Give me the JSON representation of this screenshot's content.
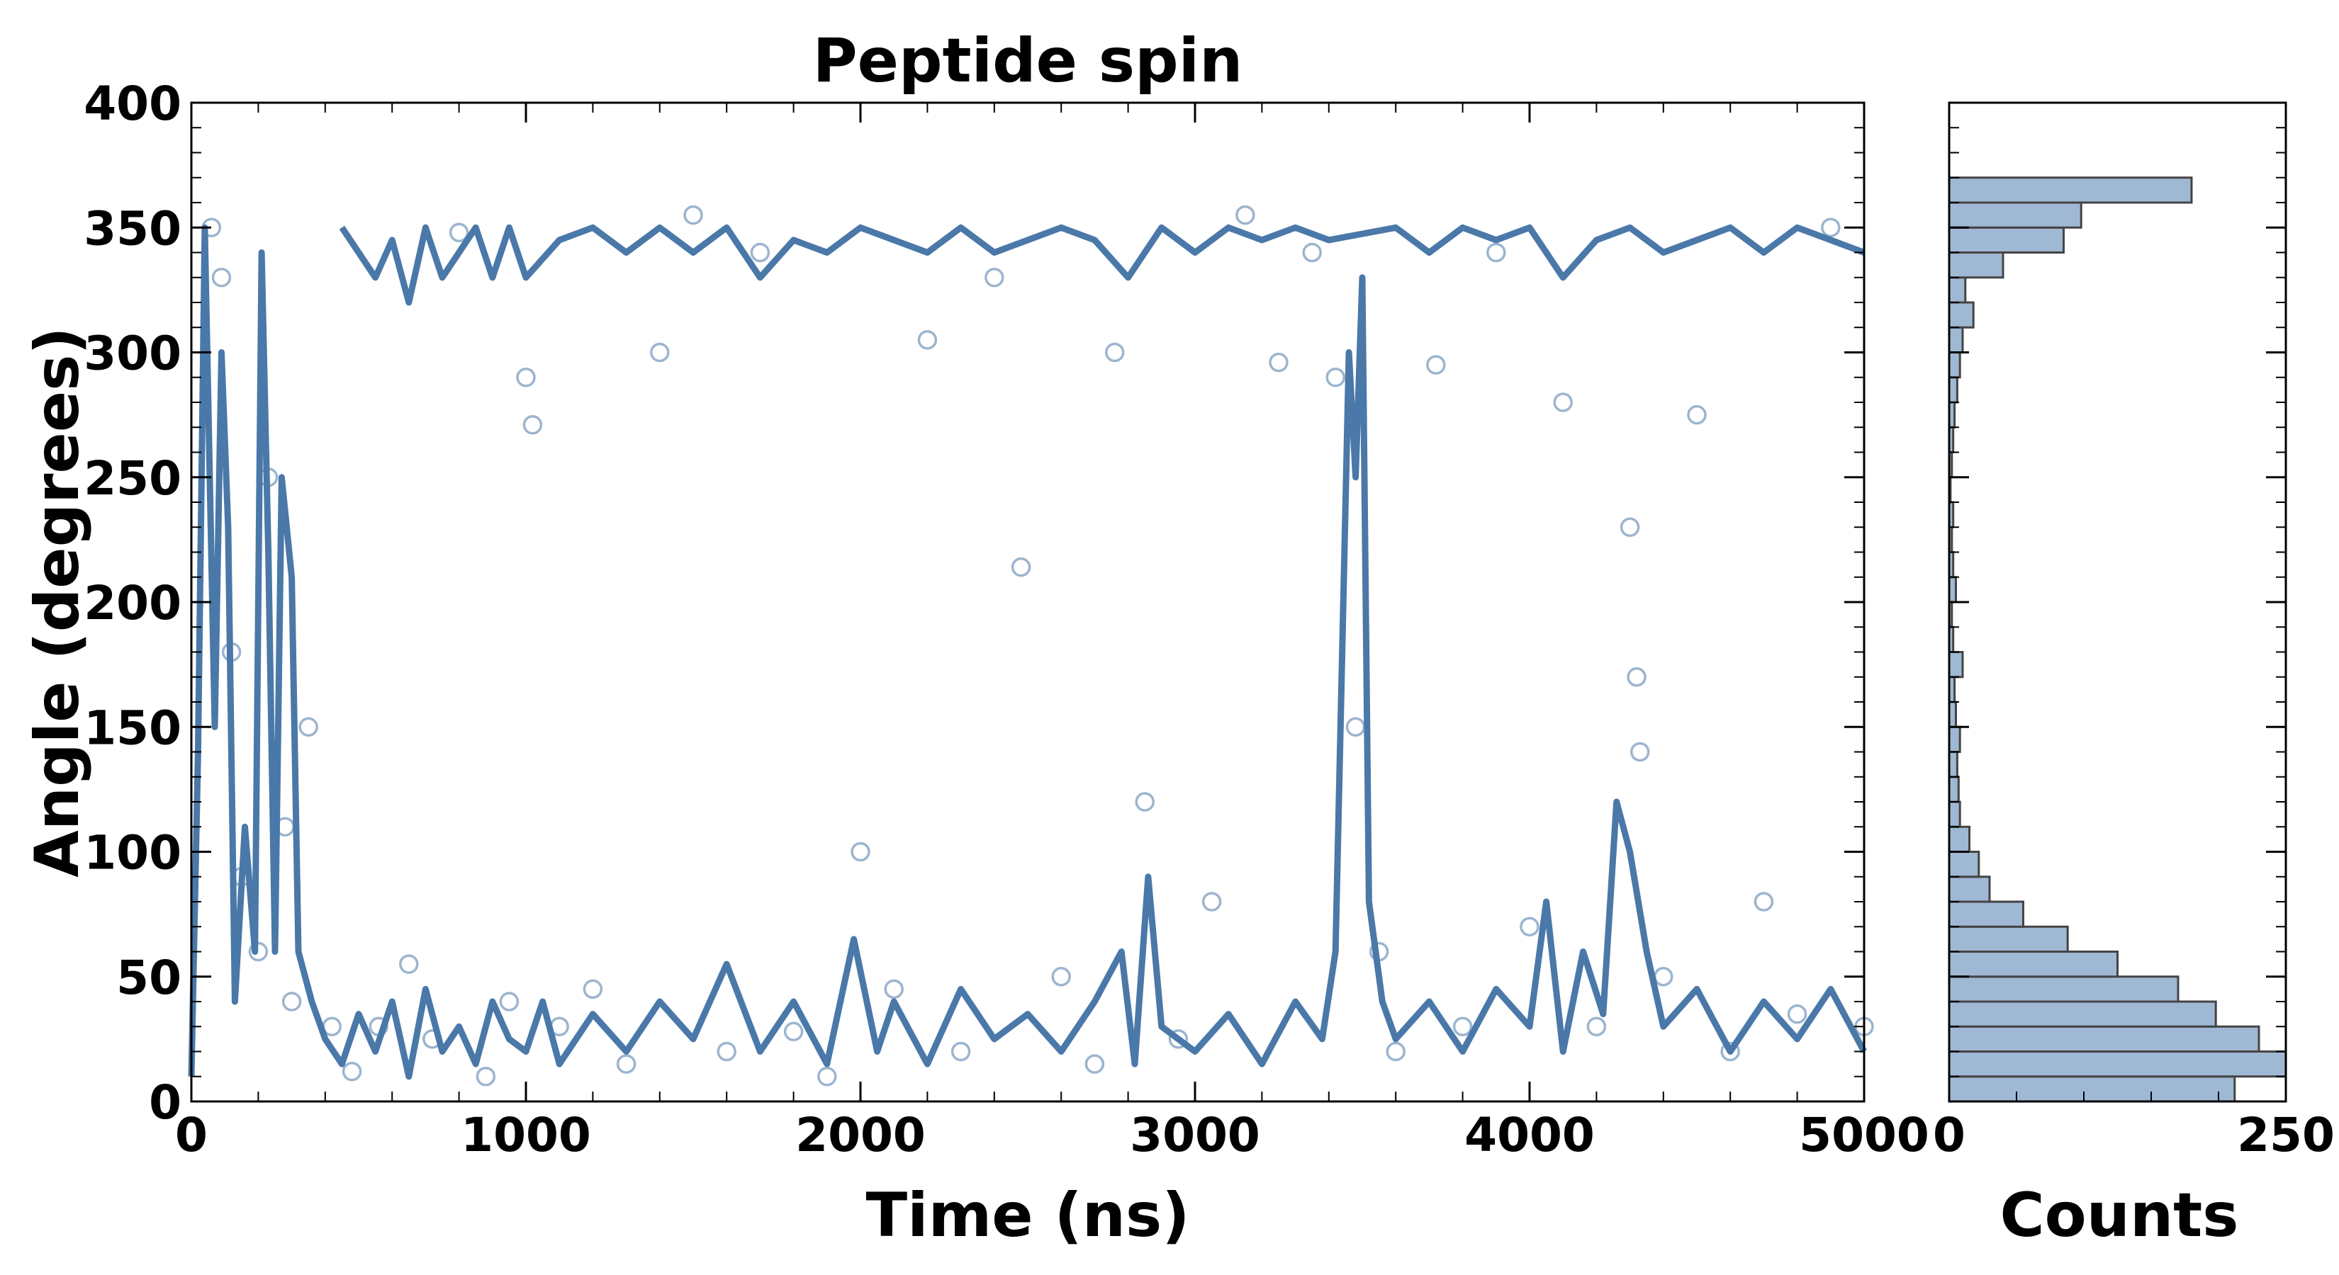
{
  "chart_data": [
    {
      "type": "scatter",
      "title": "Peptide spin",
      "xlabel": "Time (ns)",
      "ylabel": "Angle (degrees)",
      "xlim": [
        0,
        5000
      ],
      "ylim": [
        0,
        400
      ],
      "xticks": [
        "0",
        "1000",
        "2000",
        "3000",
        "4000",
        "5000"
      ],
      "yticks": [
        "0",
        "50",
        "100",
        "150",
        "200",
        "250",
        "300",
        "350",
        "400"
      ],
      "grid": false,
      "marker": "open-circle",
      "color": "#4a78a8",
      "series": [
        {
          "style": "markers",
          "points": [
            [
              60,
              350
            ],
            [
              90,
              330
            ],
            [
              120,
              180
            ],
            [
              150,
              90
            ],
            [
              200,
              60
            ],
            [
              230,
              250
            ],
            [
              280,
              110
            ],
            [
              300,
              40
            ],
            [
              350,
              150
            ],
            [
              420,
              30
            ],
            [
              480,
              12
            ],
            [
              560,
              30
            ],
            [
              650,
              55
            ],
            [
              720,
              25
            ],
            [
              800,
              348
            ],
            [
              880,
              10
            ],
            [
              950,
              40
            ],
            [
              1000,
              290
            ],
            [
              1020,
              271
            ],
            [
              1100,
              30
            ],
            [
              1200,
              45
            ],
            [
              1300,
              15
            ],
            [
              1400,
              300
            ],
            [
              1500,
              355
            ],
            [
              1600,
              20
            ],
            [
              1700,
              340
            ],
            [
              1800,
              28
            ],
            [
              1900,
              10
            ],
            [
              2000,
              100
            ],
            [
              2100,
              45
            ],
            [
              2200,
              305
            ],
            [
              2300,
              20
            ],
            [
              2400,
              330
            ],
            [
              2480,
              214
            ],
            [
              2600,
              50
            ],
            [
              2700,
              15
            ],
            [
              2760,
              300
            ],
            [
              2850,
              120
            ],
            [
              2950,
              25
            ],
            [
              3050,
              80
            ],
            [
              3150,
              355
            ],
            [
              3250,
              296
            ],
            [
              3350,
              340
            ],
            [
              3420,
              290
            ],
            [
              3480,
              150
            ],
            [
              3550,
              60
            ],
            [
              3600,
              20
            ],
            [
              3720,
              295
            ],
            [
              3800,
              30
            ],
            [
              3900,
              340
            ],
            [
              4000,
              70
            ],
            [
              4100,
              280
            ],
            [
              4200,
              30
            ],
            [
              4300,
              230
            ],
            [
              4320,
              170
            ],
            [
              4330,
              140
            ],
            [
              4400,
              50
            ],
            [
              4500,
              275
            ],
            [
              4600,
              20
            ],
            [
              4700,
              80
            ],
            [
              4800,
              35
            ],
            [
              4900,
              350
            ],
            [
              5000,
              30
            ]
          ]
        },
        {
          "style": "line",
          "points": [
            [
              0,
              10
            ],
            [
              20,
              140
            ],
            [
              40,
              350
            ],
            [
              70,
              150
            ],
            [
              90,
              300
            ],
            [
              110,
              230
            ],
            [
              130,
              40
            ],
            [
              160,
              110
            ],
            [
              190,
              60
            ],
            [
              210,
              340
            ],
            [
              230,
              220
            ],
            [
              250,
              60
            ],
            [
              270,
              250
            ],
            [
              300,
              210
            ],
            [
              320,
              60
            ],
            [
              360,
              40
            ],
            [
              400,
              25
            ],
            [
              450,
              15
            ],
            [
              500,
              35
            ],
            [
              550,
              20
            ],
            [
              600,
              40
            ],
            [
              650,
              10
            ],
            [
              700,
              45
            ],
            [
              750,
              20
            ],
            [
              800,
              30
            ],
            [
              850,
              15
            ],
            [
              900,
              40
            ],
            [
              950,
              25
            ],
            [
              1000,
              20
            ],
            [
              1050,
              40
            ],
            [
              1100,
              15
            ],
            [
              1200,
              35
            ],
            [
              1300,
              20
            ],
            [
              1400,
              40
            ],
            [
              1500,
              25
            ],
            [
              1600,
              55
            ],
            [
              1700,
              20
            ],
            [
              1800,
              40
            ],
            [
              1900,
              15
            ],
            [
              1980,
              65
            ],
            [
              2050,
              20
            ],
            [
              2100,
              40
            ],
            [
              2200,
              15
            ],
            [
              2300,
              45
            ],
            [
              2400,
              25
            ],
            [
              2500,
              35
            ],
            [
              2600,
              20
            ],
            [
              2700,
              40
            ],
            [
              2780,
              60
            ],
            [
              2820,
              15
            ],
            [
              2860,
              90
            ],
            [
              2900,
              30
            ],
            [
              3000,
              20
            ],
            [
              3100,
              35
            ],
            [
              3200,
              15
            ],
            [
              3300,
              40
            ],
            [
              3380,
              25
            ],
            [
              3420,
              60
            ],
            [
              3460,
              300
            ],
            [
              3480,
              250
            ],
            [
              3500,
              330
            ],
            [
              3520,
              80
            ],
            [
              3560,
              40
            ],
            [
              3600,
              25
            ],
            [
              3700,
              40
            ],
            [
              3800,
              20
            ],
            [
              3900,
              45
            ],
            [
              4000,
              30
            ],
            [
              4050,
              80
            ],
            [
              4100,
              20
            ],
            [
              4160,
              60
            ],
            [
              4220,
              35
            ],
            [
              4260,
              120
            ],
            [
              4300,
              100
            ],
            [
              4350,
              60
            ],
            [
              4400,
              30
            ],
            [
              4500,
              45
            ],
            [
              4600,
              20
            ],
            [
              4700,
              40
            ],
            [
              4800,
              25
            ],
            [
              4900,
              45
            ],
            [
              5000,
              20
            ]
          ]
        },
        {
          "style": "line",
          "points": [
            [
              450,
              350
            ],
            [
              500,
              340
            ],
            [
              550,
              330
            ],
            [
              600,
              345
            ],
            [
              650,
              320
            ],
            [
              700,
              350
            ],
            [
              750,
              330
            ],
            [
              800,
              340
            ],
            [
              850,
              350
            ],
            [
              900,
              330
            ],
            [
              950,
              350
            ],
            [
              1000,
              330
            ],
            [
              1100,
              345
            ],
            [
              1200,
              350
            ],
            [
              1300,
              340
            ],
            [
              1400,
              350
            ],
            [
              1500,
              340
            ],
            [
              1600,
              350
            ],
            [
              1700,
              330
            ],
            [
              1800,
              345
            ],
            [
              1900,
              340
            ],
            [
              2000,
              350
            ],
            [
              2100,
              345
            ],
            [
              2200,
              340
            ],
            [
              2300,
              350
            ],
            [
              2400,
              340
            ],
            [
              2600,
              350
            ],
            [
              2700,
              345
            ],
            [
              2800,
              330
            ],
            [
              2900,
              350
            ],
            [
              3000,
              340
            ],
            [
              3100,
              350
            ],
            [
              3200,
              345
            ],
            [
              3300,
              350
            ],
            [
              3400,
              345
            ],
            [
              3600,
              350
            ],
            [
              3700,
              340
            ],
            [
              3800,
              350
            ],
            [
              3900,
              345
            ],
            [
              4000,
              350
            ],
            [
              4100,
              330
            ],
            [
              4200,
              345
            ],
            [
              4300,
              350
            ],
            [
              4400,
              340
            ],
            [
              4500,
              345
            ],
            [
              4600,
              350
            ],
            [
              4700,
              340
            ],
            [
              4800,
              350
            ],
            [
              4900,
              345
            ],
            [
              5000,
              340
            ]
          ]
        }
      ]
    },
    {
      "type": "bar",
      "orientation": "horizontal",
      "xlabel": "Counts",
      "xlim": [
        0,
        250
      ],
      "xticks": [
        "0",
        "250"
      ],
      "ylim": [
        0,
        400
      ],
      "bin_width": 10,
      "color": "#9fb8d4",
      "edge_color": "#444444",
      "bins": [
        {
          "y0": 0,
          "count": 212
        },
        {
          "y0": 10,
          "count": 250
        },
        {
          "y0": 20,
          "count": 230
        },
        {
          "y0": 30,
          "count": 198
        },
        {
          "y0": 40,
          "count": 170
        },
        {
          "y0": 50,
          "count": 125
        },
        {
          "y0": 60,
          "count": 88
        },
        {
          "y0": 70,
          "count": 55
        },
        {
          "y0": 80,
          "count": 30
        },
        {
          "y0": 90,
          "count": 22
        },
        {
          "y0": 100,
          "count": 15
        },
        {
          "y0": 110,
          "count": 8
        },
        {
          "y0": 120,
          "count": 7
        },
        {
          "y0": 130,
          "count": 6
        },
        {
          "y0": 140,
          "count": 8
        },
        {
          "y0": 150,
          "count": 5
        },
        {
          "y0": 160,
          "count": 4
        },
        {
          "y0": 170,
          "count": 10
        },
        {
          "y0": 180,
          "count": 3
        },
        {
          "y0": 190,
          "count": 2
        },
        {
          "y0": 200,
          "count": 5
        },
        {
          "y0": 210,
          "count": 3
        },
        {
          "y0": 220,
          "count": 2
        },
        {
          "y0": 230,
          "count": 3
        },
        {
          "y0": 240,
          "count": 1
        },
        {
          "y0": 250,
          "count": 2
        },
        {
          "y0": 260,
          "count": 3
        },
        {
          "y0": 270,
          "count": 4
        },
        {
          "y0": 280,
          "count": 6
        },
        {
          "y0": 290,
          "count": 8
        },
        {
          "y0": 300,
          "count": 10
        },
        {
          "y0": 310,
          "count": 18
        },
        {
          "y0": 320,
          "count": 12
        },
        {
          "y0": 330,
          "count": 40
        },
        {
          "y0": 340,
          "count": 85
        },
        {
          "y0": 350,
          "count": 98
        },
        {
          "y0": 360,
          "count": 180
        }
      ]
    }
  ]
}
